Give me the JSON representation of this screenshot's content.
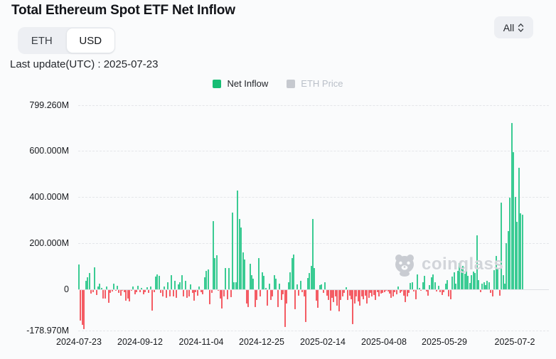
{
  "header": {
    "title": "Total Ethereum Spot ETF Net Inflow",
    "tabs": [
      {
        "label": "ETH",
        "active": false
      },
      {
        "label": "USD",
        "active": true
      }
    ],
    "range_selector": "All"
  },
  "last_update": "Last update(UTC) : 2025-07-23",
  "legend": [
    {
      "label": "Net Inflow",
      "color": "#17bd74",
      "active": true
    },
    {
      "label": "ETH Price",
      "color": "#c6c9cf",
      "active": false
    }
  ],
  "watermark": "coinglass",
  "chart_data": {
    "type": "bar",
    "title": "Total Ethereum Spot ETF Net Inflow",
    "unit": "USD millions",
    "ylim": [
      -178.97,
      799.26
    ],
    "grid": "dashed-horizontal",
    "legend_position": "top-center",
    "y_ticks": [
      {
        "label": "799.260M",
        "value": 799.26
      },
      {
        "label": "600.000M",
        "value": 600
      },
      {
        "label": "400.000M",
        "value": 400
      },
      {
        "label": "200.000M",
        "value": 200
      },
      {
        "label": "0",
        "value": 0
      },
      {
        "label": "-178.970M",
        "value": -178.97
      }
    ],
    "x_tick_labels": [
      "2024-07-23",
      "2024-09-12",
      "2024-11-04",
      "2024-12-25",
      "2025-02-14",
      "2025-04-08",
      "2025-05-29",
      "2025-07-2"
    ],
    "series": [
      {
        "name": "Net Inflow",
        "color_positive": "#3acb93",
        "color_negative": "#f45c64",
        "values": [
          106,
          -133,
          -152,
          -172,
          35,
          52,
          71,
          -18,
          -12,
          95,
          -22,
          11,
          24,
          5,
          -39,
          -37,
          10,
          -58,
          -14,
          -7,
          24,
          -2,
          14,
          -13,
          -25,
          -4,
          -9,
          -47,
          -38,
          -52,
          -5,
          11,
          -20,
          -9,
          15,
          -10,
          5,
          -20,
          -9,
          9,
          -15,
          12,
          -90,
          -10,
          55,
          63,
          57,
          -15,
          -28,
          10,
          -35,
          30,
          -30,
          62,
          -28,
          35,
          -35,
          20,
          30,
          62,
          -28,
          35,
          -35,
          -30,
          20,
          -15,
          -48,
          -10,
          -25,
          12,
          -11,
          -19,
          52,
          80,
          86,
          -63,
          -13,
          295,
          136,
          147,
          -3,
          -39,
          -81,
          -30,
          91,
          -40,
          91,
          -31,
          333,
          30,
          30,
          428,
          305,
          268,
          160,
          130,
          -60,
          -75,
          110,
          60,
          45,
          -75,
          -45,
          135,
          -30,
          72,
          58,
          5,
          -70,
          25,
          -45,
          -30,
          60,
          45,
          -75,
          25,
          -45,
          -20,
          -163,
          -60,
          30,
          72,
          135,
          150,
          -85,
          20,
          -25,
          35,
          -12,
          -30,
          -140,
          48,
          70,
          100,
          305,
          90,
          -48,
          -80,
          18,
          20,
          -15,
          30,
          -25,
          -45,
          -90,
          -35,
          -55,
          -30,
          -70,
          -95,
          -45,
          -28,
          -15,
          8,
          -45,
          -25,
          -40,
          -150,
          -60,
          -30,
          -50,
          -70,
          -30,
          -40,
          -25,
          -60,
          -35,
          -15,
          -30,
          -22,
          -45,
          -12,
          -30,
          -18,
          -15,
          -12,
          -3,
          -6,
          -18,
          -35,
          -28,
          -12,
          -20,
          12,
          -15,
          -8,
          -25,
          -55,
          -30,
          -15,
          27,
          30,
          -8,
          -40,
          64,
          2,
          -4,
          30,
          57,
          -8,
          -25,
          18,
          52,
          63,
          30,
          -8,
          15,
          -10,
          -22,
          -10,
          25,
          38,
          -30,
          -40,
          55,
          73,
          25,
          78,
          114,
          95,
          100,
          68,
          88,
          58,
          28,
          60,
          75,
          70,
          232,
          40,
          -12,
          25,
          30,
          18,
          35,
          30,
          -15,
          -28,
          83,
          143,
          90,
          -25,
          375,
          62,
          25,
          201,
          252,
          396,
          721,
          594,
          399,
          291,
          526,
          329,
          324
        ]
      },
      {
        "name": "ETH Price",
        "visible": false,
        "values": []
      }
    ]
  }
}
